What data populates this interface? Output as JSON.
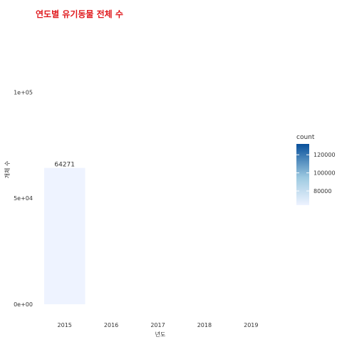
{
  "chart_data": {
    "type": "bar",
    "title": "연도별 유기동물 전체 수",
    "xlabel": "년도",
    "ylabel": "개체 수",
    "categories": [
      "2015",
      "2016",
      "2017",
      "2018",
      "2019"
    ],
    "values": [
      64271,
      null,
      null,
      null,
      null
    ],
    "data_labels": [
      "64271",
      "",
      "",
      "",
      ""
    ],
    "ylim": [
      0,
      130000
    ],
    "y_ticks": [
      0,
      50000,
      100000
    ],
    "y_tick_labels": [
      "0e+00",
      "5e+04",
      "1e+05"
    ],
    "grid": false,
    "legend": {
      "title": "count",
      "placement": "right",
      "type": "colorbar",
      "range": [
        64271,
        132000
      ],
      "ticks": [
        80000,
        100000,
        120000
      ],
      "tick_labels": [
        "80000",
        "100000",
        "120000"
      ],
      "colors": [
        "#eef3ff",
        "#08509b"
      ]
    },
    "title_color": "#e0191d"
  }
}
